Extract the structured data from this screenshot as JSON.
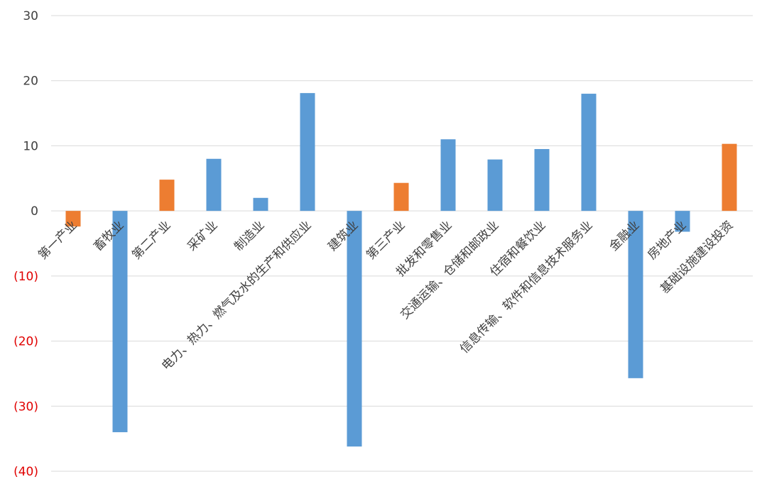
{
  "chart_data": {
    "type": "bar",
    "categories": [
      "第一产业",
      "畜牧业",
      "第二产业",
      "采矿业",
      "制造业",
      "电力、热力、燃气及水的生产和供应业",
      "建筑业",
      "第三产业",
      "批发和零售业",
      "交通运输、仓储和邮政业",
      "住宿和餐饮业",
      "信息传输、软件和信息技术服务业",
      "金融业",
      "房地产业",
      "基础设施建设投资"
    ],
    "values": [
      -2.4,
      -34.0,
      4.8,
      8.0,
      2.0,
      18.1,
      -36.2,
      4.3,
      11.0,
      7.9,
      9.5,
      18.0,
      -25.7,
      -3.2,
      10.3
    ],
    "bar_colors": [
      "#ed7d31",
      "#5b9bd5",
      "#ed7d31",
      "#5b9bd5",
      "#5b9bd5",
      "#5b9bd5",
      "#5b9bd5",
      "#ed7d31",
      "#5b9bd5",
      "#5b9bd5",
      "#5b9bd5",
      "#5b9bd5",
      "#5b9bd5",
      "#5b9bd5",
      "#ed7d31"
    ],
    "y_ticks": [
      30,
      20,
      10,
      0,
      -10,
      -20,
      -30,
      -40
    ],
    "y_tick_labels": [
      "30",
      "20",
      "10",
      "0",
      "(10)",
      "(20)",
      "(30)",
      "(40)"
    ],
    "ylim": [
      -40,
      30
    ],
    "grid": true,
    "title": "",
    "xlabel": "",
    "ylabel": "",
    "colors": {
      "primary": "#5b9bd5",
      "sector": "#ed7d31",
      "negative_tick": "#e00000",
      "tick": "#404040",
      "grid": "#d9d9d9"
    }
  }
}
